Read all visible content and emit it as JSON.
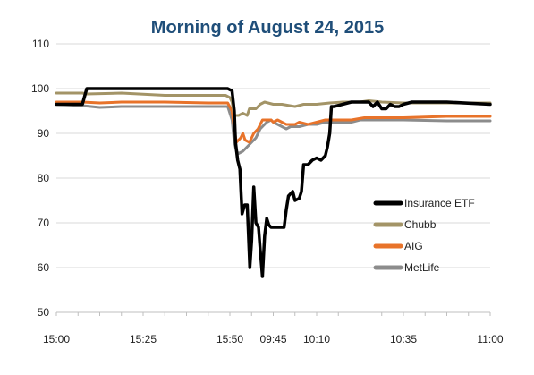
{
  "chart_data": {
    "type": "line",
    "title": "Morning of August 24, 2015",
    "xlabel": "",
    "ylabel": "",
    "ylim": [
      50,
      110
    ],
    "yticks": [
      50,
      60,
      70,
      80,
      90,
      100,
      110
    ],
    "xlim": [
      0,
      100
    ],
    "xticks": [
      {
        "x": 0,
        "label": "15:00"
      },
      {
        "x": 20,
        "label": "15:25"
      },
      {
        "x": 40,
        "label": "15:50"
      },
      {
        "x": 50,
        "label": "09:45"
      },
      {
        "x": 60,
        "label": "10:10"
      },
      {
        "x": 80,
        "label": "10:35"
      },
      {
        "x": 100,
        "label": "11:00"
      }
    ],
    "grid": "horizontal",
    "legend": "right",
    "series": [
      {
        "name": "Insurance ETF",
        "color": "#000000",
        "width": 3.5,
        "points": [
          [
            0,
            96.5
          ],
          [
            6,
            96.5
          ],
          [
            7,
            100
          ],
          [
            15,
            100
          ],
          [
            30,
            100
          ],
          [
            39.5,
            100
          ],
          [
            40.5,
            99.5
          ],
          [
            41,
            95
          ],
          [
            41.3,
            88
          ],
          [
            41.8,
            84
          ],
          [
            42.3,
            82
          ],
          [
            42.8,
            72
          ],
          [
            43.4,
            74
          ],
          [
            44,
            74
          ],
          [
            44.6,
            60
          ],
          [
            45,
            66
          ],
          [
            45.5,
            78
          ],
          [
            46,
            70
          ],
          [
            46.6,
            69
          ],
          [
            47,
            64
          ],
          [
            47.5,
            58
          ],
          [
            48,
            67
          ],
          [
            48.5,
            71
          ],
          [
            49,
            69.5
          ],
          [
            49.5,
            69
          ],
          [
            52.5,
            69
          ],
          [
            53,
            73
          ],
          [
            53.5,
            76
          ],
          [
            54.5,
            77
          ],
          [
            55,
            75
          ],
          [
            56,
            75.5
          ],
          [
            56.5,
            77
          ],
          [
            57,
            83
          ],
          [
            58,
            83
          ],
          [
            59,
            84
          ],
          [
            60,
            84.5
          ],
          [
            61,
            84
          ],
          [
            62,
            85
          ],
          [
            62.5,
            87
          ],
          [
            63,
            90
          ],
          [
            63.4,
            96
          ],
          [
            64,
            96
          ],
          [
            66,
            96.5
          ],
          [
            68,
            97
          ],
          [
            71,
            97
          ],
          [
            72,
            97
          ],
          [
            73,
            96
          ],
          [
            74,
            97
          ],
          [
            75,
            95.5
          ],
          [
            76,
            95.5
          ],
          [
            77,
            96.5
          ],
          [
            78,
            96
          ],
          [
            79,
            96
          ],
          [
            80,
            96.5
          ],
          [
            82,
            97
          ],
          [
            90,
            97
          ],
          [
            100,
            96.5
          ]
        ]
      },
      {
        "name": "Chubb",
        "color": "#a39467",
        "width": 3,
        "points": [
          [
            0,
            99
          ],
          [
            6,
            99
          ],
          [
            7,
            98.8
          ],
          [
            15,
            99
          ],
          [
            25,
            98.5
          ],
          [
            35,
            98.5
          ],
          [
            39,
            98.5
          ],
          [
            40,
            98
          ],
          [
            40.5,
            97
          ],
          [
            41,
            94
          ],
          [
            42,
            94
          ],
          [
            43,
            94.5
          ],
          [
            44,
            94
          ],
          [
            44.5,
            95.5
          ],
          [
            46,
            95.5
          ],
          [
            47,
            96.5
          ],
          [
            48,
            97
          ],
          [
            50,
            96.5
          ],
          [
            52,
            96.5
          ],
          [
            55,
            96
          ],
          [
            57,
            96.5
          ],
          [
            60,
            96.5
          ],
          [
            63,
            96.8
          ],
          [
            66,
            97
          ],
          [
            70,
            97
          ],
          [
            72,
            97.3
          ],
          [
            75,
            97
          ],
          [
            80,
            96.8
          ],
          [
            88,
            96.8
          ],
          [
            100,
            96.8
          ]
        ]
      },
      {
        "name": "AIG",
        "color": "#e8732a",
        "width": 3,
        "points": [
          [
            0,
            97
          ],
          [
            6,
            97
          ],
          [
            10,
            96.8
          ],
          [
            15,
            97
          ],
          [
            25,
            97
          ],
          [
            35,
            96.8
          ],
          [
            39.5,
            96.8
          ],
          [
            40.5,
            95
          ],
          [
            41,
            91
          ],
          [
            41.5,
            88
          ],
          [
            42,
            88.5
          ],
          [
            42.5,
            89
          ],
          [
            43,
            90
          ],
          [
            43.5,
            88.5
          ],
          [
            44.5,
            88
          ],
          [
            45,
            89
          ],
          [
            45.5,
            90
          ],
          [
            46.5,
            91
          ],
          [
            47.5,
            93
          ],
          [
            48.5,
            93
          ],
          [
            49.5,
            93
          ],
          [
            50,
            92.5
          ],
          [
            51,
            93
          ],
          [
            52,
            92.5
          ],
          [
            53,
            92
          ],
          [
            54,
            92
          ],
          [
            55,
            92
          ],
          [
            56,
            92.5
          ],
          [
            58,
            92
          ],
          [
            60,
            92.5
          ],
          [
            62,
            93
          ],
          [
            65,
            93
          ],
          [
            68,
            93
          ],
          [
            71,
            93.5
          ],
          [
            75,
            93.5
          ],
          [
            80,
            93.5
          ],
          [
            90,
            93.8
          ],
          [
            100,
            93.8
          ]
        ]
      },
      {
        "name": "MetLife",
        "color": "#8c8c8c",
        "width": 3,
        "points": [
          [
            0,
            96.5
          ],
          [
            6,
            96.2
          ],
          [
            10,
            95.8
          ],
          [
            15,
            96
          ],
          [
            25,
            96
          ],
          [
            35,
            96
          ],
          [
            39.5,
            96
          ],
          [
            40.5,
            93
          ],
          [
            41,
            88
          ],
          [
            41.5,
            86
          ],
          [
            42,
            85.5
          ],
          [
            43,
            86
          ],
          [
            44,
            87
          ],
          [
            45,
            88
          ],
          [
            46,
            89
          ],
          [
            47,
            91
          ],
          [
            48,
            92
          ],
          [
            48.5,
            92.5
          ],
          [
            49.5,
            93
          ],
          [
            50,
            92.5
          ],
          [
            51,
            92
          ],
          [
            52,
            91.5
          ],
          [
            53,
            91
          ],
          [
            54,
            91.5
          ],
          [
            56,
            91.5
          ],
          [
            58,
            92
          ],
          [
            60,
            92
          ],
          [
            62,
            92.5
          ],
          [
            65,
            92.5
          ],
          [
            68,
            92.5
          ],
          [
            70,
            93
          ],
          [
            75,
            93
          ],
          [
            80,
            93
          ],
          [
            90,
            92.8
          ],
          [
            100,
            92.8
          ]
        ]
      }
    ]
  }
}
